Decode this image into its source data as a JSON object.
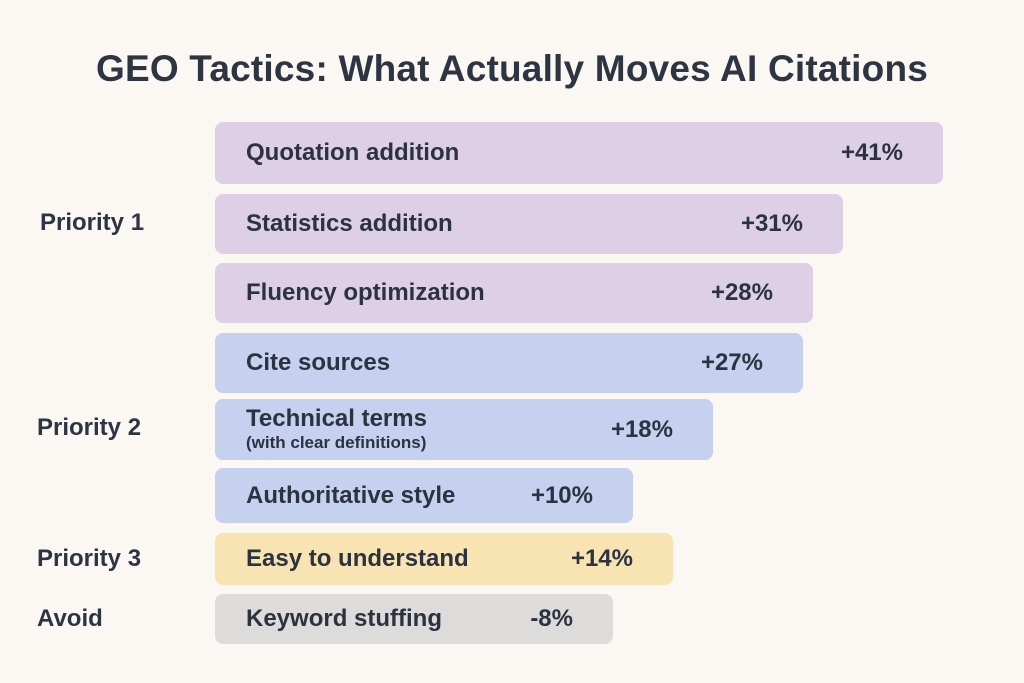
{
  "chart_data": {
    "type": "bar",
    "orientation": "horizontal",
    "title": "GEO Tactics: What Actually Moves AI Citations",
    "categories": [
      "Quotation addition",
      "Statistics addition",
      "Fluency optimization",
      "Cite sources",
      "Technical terms",
      "Authoritative style",
      "Easy to understand",
      "Keyword stuffing"
    ],
    "sublabels": [
      "",
      "",
      "",
      "",
      "(with clear definitions)",
      "",
      "",
      ""
    ],
    "values": [
      41,
      31,
      28,
      27,
      18,
      10,
      14,
      -8
    ],
    "value_labels": [
      "+41%",
      "+31%",
      "+28%",
      "+27%",
      "+18%",
      "+10%",
      "+14%",
      "-8%"
    ],
    "groups": [
      {
        "name": "Priority 1",
        "members": [
          0,
          1,
          2
        ],
        "color": "#dccfe6"
      },
      {
        "name": "Priority 2",
        "members": [
          3,
          4,
          5
        ],
        "color": "#c6d0ef"
      },
      {
        "name": "Priority 3",
        "members": [
          6
        ],
        "color": "#f8e4b3"
      },
      {
        "name": "Avoid",
        "members": [
          7
        ],
        "color": "#dedcdb"
      }
    ],
    "grid": false,
    "legend": "none"
  }
}
